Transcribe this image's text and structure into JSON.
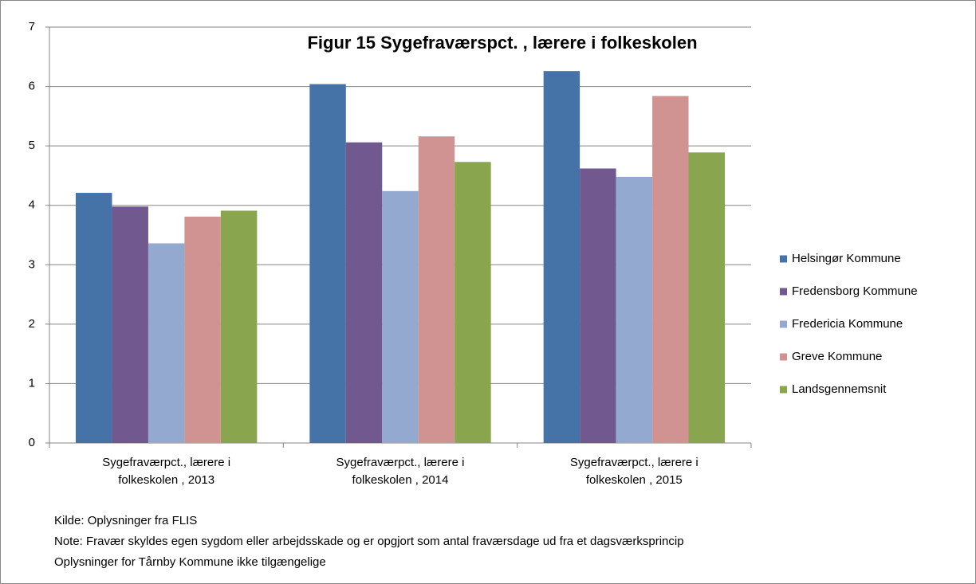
{
  "chart_data": {
    "type": "bar",
    "title": "Figur 15 Sygefraværspct. , lærere i folkeskolen",
    "categories": [
      "Sygefraværpct., lærere i folkeskolen , 2013",
      "Sygefraværpct., lærere i folkeskolen , 2014",
      "Sygefraværpct., lærere i folkeskolen , 2015"
    ],
    "series": [
      {
        "name": "Helsingør Kommune",
        "color": "#4572a7",
        "values": [
          4.21,
          6.04,
          6.26
        ]
      },
      {
        "name": "Fredensborg Kommune",
        "color": "#71588f",
        "values": [
          3.98,
          5.06,
          4.62
        ]
      },
      {
        "name": "Fredericia Kommune",
        "color": "#93a9cf",
        "values": [
          3.36,
          4.24,
          4.48
        ]
      },
      {
        "name": "Greve Kommune",
        "color": "#d19392",
        "values": [
          3.81,
          5.16,
          5.84
        ]
      },
      {
        "name": "Landsgennemsnit",
        "color": "#89a54e",
        "values": [
          3.91,
          4.73,
          4.89
        ]
      }
    ],
    "ylim": [
      0,
      7
    ],
    "yticks": [
      0,
      1,
      2,
      3,
      4,
      5,
      6,
      7
    ],
    "grid": true,
    "legend": "right",
    "notes": [
      "Kilde: Oplysninger fra FLIS",
      "Note: Fravær skyldes egen sygdom eller arbejdsskade og er opgjort som antal fraværsdage ud fra et dagsværksprincip",
      "Oplysninger for Tårnby Kommune ikke tilgængelige"
    ]
  }
}
